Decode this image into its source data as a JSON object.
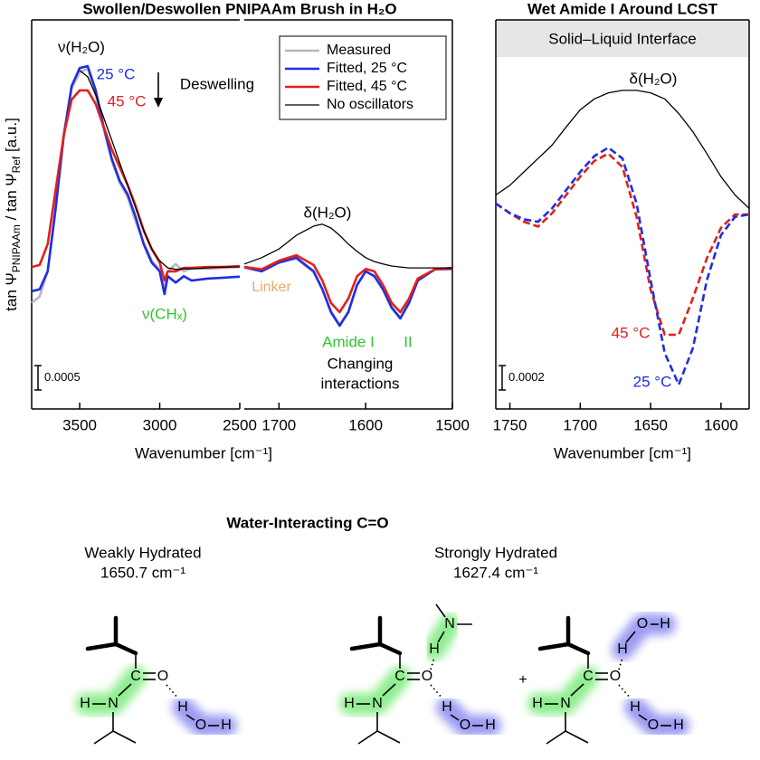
{
  "chart_data": [
    {
      "type": "line",
      "title": "Swollen/Deswollen PNIPAAm Brush in H₂O",
      "y_label": [
        "tan Ψ",
        "PNIPAAm",
        " / tan Ψ",
        "Ref",
        " [a.u.]"
      ],
      "x_label": "Wavenumber [cm⁻¹]",
      "x": [
        3800,
        3750,
        3700,
        3650,
        3600,
        3550,
        3500,
        3450,
        3400,
        3350,
        3300,
        3250,
        3200,
        3150,
        3100,
        3050,
        3000,
        2970,
        2950,
        2900,
        2850,
        2800,
        2700,
        2600,
        2500
      ],
      "xlim": [
        3800,
        2500
      ],
      "xticks": [
        3500,
        3000,
        2500
      ],
      "ylim": [
        0,
        0.008
      ],
      "series": [
        {
          "name": "Measured",
          "color": "#b8b8b8",
          "values": [
            0.00218,
            0.00231,
            0.00283,
            0.00409,
            0.00558,
            0.00659,
            0.00692,
            0.007,
            0.00646,
            0.00577,
            0.0051,
            0.00465,
            0.00435,
            0.00385,
            0.00342,
            0.00305,
            0.00287,
            0.00246,
            0.00283,
            0.00298,
            0.00283,
            0.0029,
            0.00288,
            0.0029,
            0.00292
          ]
        },
        {
          "name": "Fitted, 25 °C",
          "color": "#1f2ee0",
          "values": [
            0.00242,
            0.00246,
            0.00283,
            0.00413,
            0.00562,
            0.00664,
            0.00701,
            0.00705,
            0.00655,
            0.0058,
            0.00515,
            0.00469,
            0.00441,
            0.00394,
            0.00339,
            0.00301,
            0.00283,
            0.00236,
            0.00273,
            0.0026,
            0.00273,
            0.00264,
            0.00268,
            0.0027,
            0.00272
          ]
        },
        {
          "name": "Fitted, 45 °C",
          "color": "#e2201c",
          "values": [
            0.00292,
            0.00296,
            0.00339,
            0.0045,
            0.00562,
            0.00636,
            0.00655,
            0.00655,
            0.00627,
            0.0058,
            0.00534,
            0.00497,
            0.0046,
            0.00417,
            0.00367,
            0.00329,
            0.00301,
            0.00264,
            0.00283,
            0.00283,
            0.0029,
            0.0029,
            0.00292,
            0.00292,
            0.00294
          ]
        },
        {
          "name": "No oscillators",
          "color": "#000000",
          "values": [
            null,
            null,
            null,
            null,
            null,
            null,
            0.00696,
            0.00683,
            0.00646,
            0.00599,
            0.00553,
            0.00506,
            0.0046,
            0.00413,
            0.00367,
            0.00329,
            0.00305,
            0.00296,
            0.0029,
            0.00287,
            0.00288,
            0.00288,
            0.0029,
            0.00292,
            0.00292
          ]
        }
      ],
      "annotations": [
        "ν(H₂O)",
        "25 °C",
        "45 °C",
        "Deswelling",
        "ν(CHₓ)"
      ],
      "scale_bar": 0.0005
    },
    {
      "type": "line",
      "x": [
        1740,
        1720,
        1700,
        1680,
        1660,
        1650,
        1640,
        1630,
        1620,
        1610,
        1600,
        1590,
        1580,
        1570,
        1560,
        1550,
        1540,
        1520,
        1500
      ],
      "xlim": [
        1740,
        1500
      ],
      "xticks": [
        1700,
        1600,
        1500
      ],
      "ylim": [
        0,
        0.008
      ],
      "series": [
        {
          "name": "Measured",
          "color": "#b8b8b8",
          "values": [
            0.0029,
            0.00283,
            0.00301,
            0.00309,
            0.00281,
            0.00246,
            0.00201,
            0.00173,
            0.00199,
            0.00253,
            0.00283,
            0.00273,
            0.00246,
            0.0021,
            0.00188,
            0.00218,
            0.00264,
            0.00287,
            0.00288
          ]
        },
        {
          "name": "Fitted, 25 °C",
          "color": "#1f2ee0",
          "values": [
            0.00292,
            0.00283,
            0.00301,
            0.00311,
            0.00283,
            0.00246,
            0.00199,
            0.00171,
            0.00199,
            0.00255,
            0.00283,
            0.00273,
            0.00246,
            0.00208,
            0.00186,
            0.00218,
            0.00264,
            0.00287,
            0.00288
          ]
        },
        {
          "name": "Fitted, 45 °C",
          "color": "#e2201c",
          "values": [
            0.00292,
            0.00287,
            0.00305,
            0.00316,
            0.00296,
            0.00264,
            0.00218,
            0.00199,
            0.00227,
            0.00273,
            0.00288,
            0.00283,
            0.00255,
            0.00218,
            0.00199,
            0.00227,
            0.00268,
            0.00287,
            0.0029
          ]
        },
        {
          "name": "No oscillators",
          "color": "#000000",
          "values": [
            0.00298,
            0.00311,
            0.00329,
            0.00357,
            0.00376,
            0.0038,
            0.00372,
            0.00357,
            0.00339,
            0.00324,
            0.00311,
            0.00303,
            0.00298,
            0.00294,
            0.00292,
            0.0029,
            0.0029,
            0.0029,
            0.0029
          ]
        }
      ],
      "legend": "upper right",
      "annotations": [
        "δ(H₂O)",
        "Linker",
        "Amide I",
        "II",
        "Changing",
        "interactions"
      ]
    },
    {
      "type": "line",
      "title": "Wet Amide I Around LCST",
      "header": "Solid–Liquid Interface",
      "x_label": "Wavenumber [cm⁻¹]",
      "x": [
        1760,
        1750,
        1740,
        1730,
        1720,
        1710,
        1700,
        1690,
        1680,
        1670,
        1660,
        1650,
        1640,
        1630,
        1620,
        1610,
        1600,
        1590,
        1580
      ],
      "xlim": [
        1760,
        1580
      ],
      "xticks": [
        1750,
        1700,
        1650,
        1600
      ],
      "ylim": [
        0,
        0.0032
      ],
      "dashed": true,
      "series": [
        {
          "name": "δ(H₂O)",
          "color": "#000000",
          "values": [
            0.00176,
            0.00184,
            0.00195,
            0.00206,
            0.00217,
            0.00232,
            0.00246,
            0.00255,
            0.0026,
            0.00262,
            0.00262,
            0.0026,
            0.00255,
            0.00243,
            0.00228,
            0.0021,
            0.00191,
            0.00176,
            0.00165
          ]
        },
        {
          "name": "45 °C",
          "color": "#e2201c",
          "values": [
            0.00169,
            0.00161,
            0.00154,
            0.0015,
            0.00161,
            0.00176,
            0.00191,
            0.00204,
            0.0021,
            0.00199,
            0.00158,
            0.00098,
            0.00061,
            0.00061,
            0.00091,
            0.00124,
            0.00149,
            0.0016,
            0.0016
          ]
        },
        {
          "name": "25 °C",
          "color": "#1f2ee0",
          "values": [
            0.00169,
            0.00161,
            0.00156,
            0.00154,
            0.00165,
            0.0018,
            0.00195,
            0.00208,
            0.00215,
            0.00206,
            0.00169,
            0.00106,
            0.00046,
            0.0002,
            0.0005,
            0.00106,
            0.00143,
            0.00158,
            0.0016
          ]
        }
      ],
      "scale_bar": 0.0002
    }
  ],
  "diagram": {
    "title": "Water-Interacting C=O",
    "states": [
      {
        "name": "Weakly Hydrated",
        "wavenumber": "1650.7 cm⁻¹"
      },
      {
        "name": "Strongly Hydrated",
        "wavenumber": "1627.4 cm⁻¹"
      }
    ],
    "plus": "+",
    "atoms": {
      "carbon": "C",
      "oxygen": "O",
      "nitrogen": "N",
      "hydrogen": "H"
    }
  }
}
